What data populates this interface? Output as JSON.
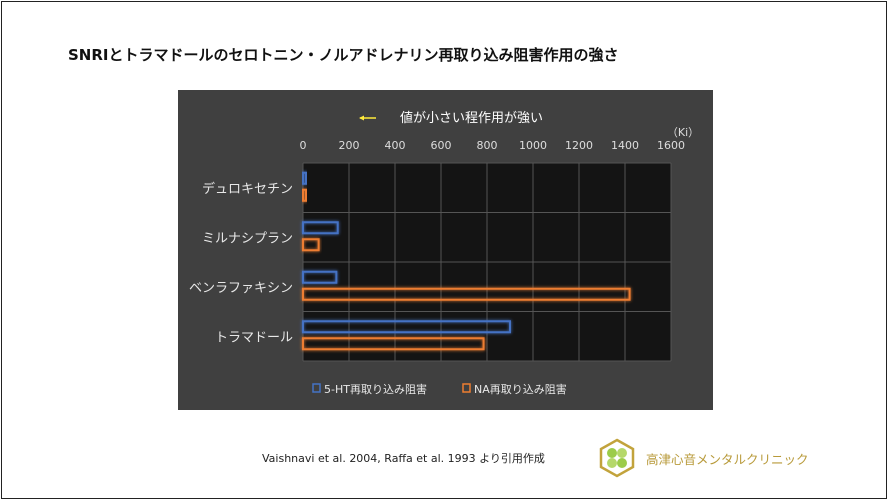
{
  "title": "SNRIとトラマドールのセロトニン・ノルアドレナリン再取り込み阻害作用の強さ",
  "source": "Vaishnavi et al. 2004, Raffa et al. 1993 より引用作成",
  "logo": {
    "text": "高津心音メンタルクリニック",
    "color": "#b89a3a"
  },
  "chart_data": {
    "type": "bar",
    "orientation": "horizontal",
    "annotation": "値が小さい程作用が強い",
    "unit_label": "（Ki）",
    "categories": [
      "デュロキセチン",
      "ミルナシプラン",
      "ベンラファキシン",
      "トラマドール"
    ],
    "series": [
      {
        "name": "5-HT再取り込み阻害",
        "color": "#4472c4",
        "values": [
          0.8,
          151,
          145,
          900
        ]
      },
      {
        "name": "NA再取り込み阻害",
        "color": "#ed7d31",
        "values": [
          7.5,
          68,
          1420,
          785
        ]
      }
    ],
    "xlim": [
      0,
      1600
    ],
    "xticks": [
      "0",
      "200",
      "400",
      "600",
      "800",
      "1000",
      "1200",
      "1400",
      "1600"
    ],
    "grid": true,
    "legend": "bottom"
  }
}
